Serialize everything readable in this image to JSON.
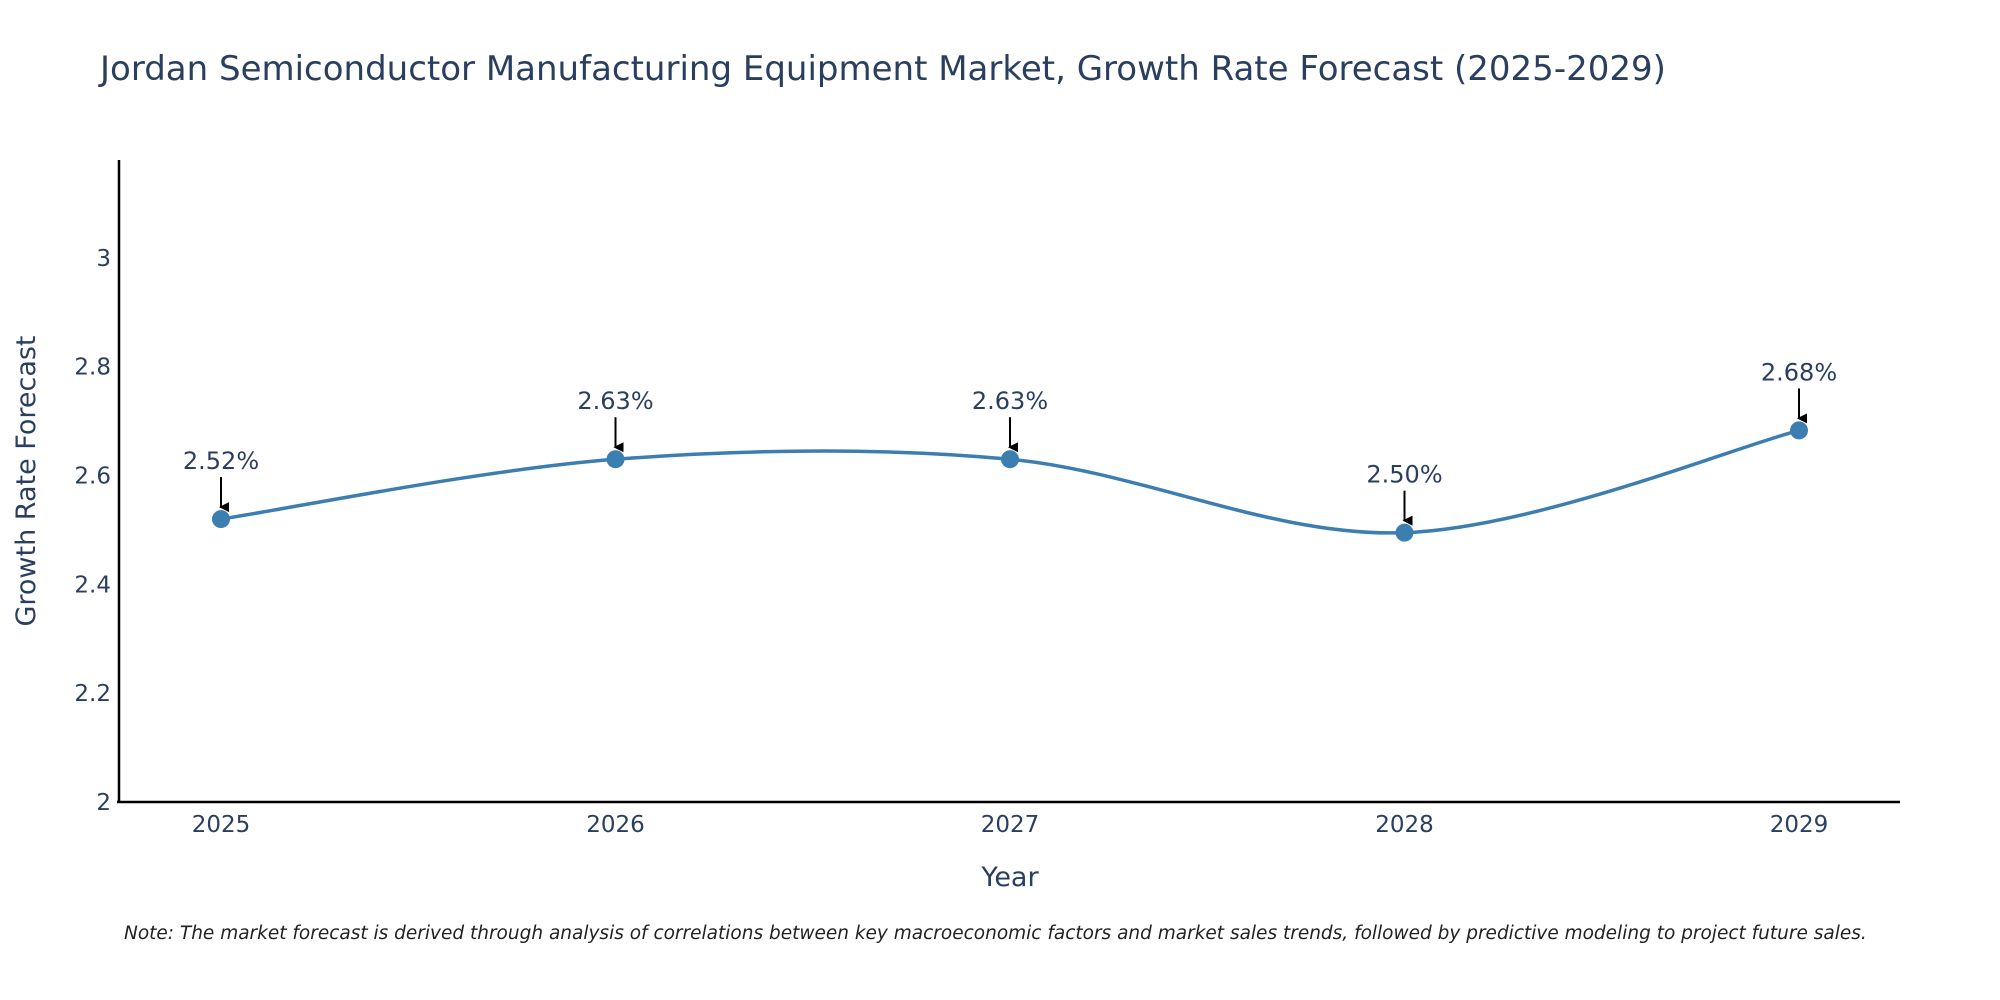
{
  "chart_data": {
    "type": "line",
    "title": "Jordan Semiconductor Manufacturing Equipment Market, Growth Rate Forecast (2025-2029)",
    "xlabel": "Year",
    "ylabel": "Growth Rate Forecast",
    "categories": [
      "2025",
      "2026",
      "2027",
      "2028",
      "2029"
    ],
    "values": [
      2.52,
      2.63,
      2.63,
      2.495,
      2.683
    ],
    "data_labels": [
      "2.52%",
      "2.63%",
      "2.63%",
      "2.50%",
      "2.68%"
    ],
    "ylim": [
      2,
      3.18
    ],
    "yticks": [
      2,
      2.2,
      2.4,
      2.6,
      2.8,
      3
    ],
    "ytick_labels": [
      "2",
      "2.2",
      "2.4",
      "2.6",
      "2.8",
      "3"
    ],
    "grid": false,
    "line_shape": "spline",
    "series_color": "#3d7eb0",
    "annotation_arrow_color": "#000000"
  },
  "note": "Note: The market forecast is derived through analysis of correlations between key macroeconomic factors and market sales trends, followed by predictive modeling to project future sales."
}
